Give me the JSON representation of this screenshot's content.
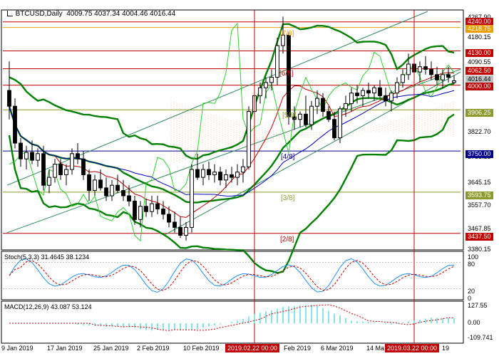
{
  "header": {
    "symbol": "BTCUSD,Daily",
    "ohlc": "4009.75 4037.34 4004.46 4016.44"
  },
  "stoch": {
    "label": "Stoch(5,3,3) 31.4645 38.1234",
    "ticks": [
      "100",
      "80",
      "20",
      "0"
    ]
  },
  "macd": {
    "label": "MACD(12,26,9) 43.087 53.124",
    "ticks": [
      "127.55",
      "0.00",
      "-109.741"
    ]
  },
  "murrey_labels": [
    "[7/8]",
    "[6/8]",
    "[5/8]",
    "[4/8]",
    "[3/8]",
    "[2/8]"
  ],
  "price_ticks": [
    "4267.90",
    "4180.15",
    "4090.55",
    "3912.50",
    "3822.70",
    "3735.35",
    "3645.15",
    "3557.70",
    "3467.85",
    "3380.15"
  ],
  "price_tags": [
    {
      "text": "4240.00",
      "color": "#c00000"
    },
    {
      "text": "4218.75",
      "color": "#e8a000"
    },
    {
      "text": "4130.00",
      "color": "#c00000"
    },
    {
      "text": "4062.50",
      "color": "#c00000"
    },
    {
      "text": "4016.44",
      "color": "#c0c0c0"
    },
    {
      "text": "4000.00",
      "color": "#c00000"
    },
    {
      "text": "3906.25",
      "color": "#8c9a2c"
    },
    {
      "text": "3750.00",
      "color": "#00008b"
    },
    {
      "text": "3593.75",
      "color": "#8c9a2c"
    },
    {
      "text": "3437.50",
      "color": "#c00000"
    }
  ],
  "x_ticks": [
    "9 Jan 2019",
    "17 Jan 2019",
    "25 Jan 2019",
    "2 Feb 2019",
    "10 Feb 2019",
    "Feb 2019",
    "6 Mar 2019",
    "14 Ma",
    "19"
  ],
  "x_markers": [
    "2019.02.22 00:00",
    "2019.03.22 00:00"
  ],
  "colors": {
    "resistance": "#c00000",
    "murrey_mid": "#e8a000",
    "murrey_green": "#8c9a2c",
    "murrey_blue": "#00008b",
    "bollinger": "#008000",
    "channel": "#2e8b57",
    "ichimoku_tenkan": "#c00000",
    "ichimoku_kijun": "#0000c0",
    "chikou": "#32cd32",
    "cloud": "#f0a070",
    "stoch_main": "#1e90ff",
    "stoch_signal": "#c00000",
    "macd": "#00ced1"
  },
  "chart_data": {
    "type": "candlestick",
    "timeframe": "Daily",
    "symbol": "BTCUSD",
    "ohlc_last": {
      "open": 4009.75,
      "high": 4037.34,
      "low": 4004.46,
      "close": 4016.44
    },
    "ylim": [
      3380,
      4280
    ],
    "price_levels": [
      4240.0,
      4218.75,
      4130.0,
      4062.5,
      4000.0,
      3906.25,
      3750.0,
      3593.75,
      3437.5
    ],
    "candles": [
      [
        3980,
        4090,
        3870,
        3920
      ],
      [
        3920,
        3950,
        3760,
        3780
      ],
      [
        3780,
        3800,
        3690,
        3720
      ],
      [
        3720,
        3770,
        3680,
        3745
      ],
      [
        3745,
        3790,
        3700,
        3715
      ],
      [
        3715,
        3760,
        3690,
        3740
      ],
      [
        3740,
        3770,
        3600,
        3620
      ],
      [
        3620,
        3680,
        3590,
        3650
      ],
      [
        3650,
        3720,
        3630,
        3700
      ],
      [
        3700,
        3720,
        3640,
        3660
      ],
      [
        3660,
        3700,
        3620,
        3680
      ],
      [
        3680,
        3760,
        3660,
        3740
      ],
      [
        3740,
        3780,
        3700,
        3720
      ],
      [
        3720,
        3750,
        3640,
        3660
      ],
      [
        3660,
        3680,
        3560,
        3600
      ],
      [
        3600,
        3660,
        3580,
        3640
      ],
      [
        3640,
        3680,
        3600,
        3610
      ],
      [
        3610,
        3650,
        3560,
        3580
      ],
      [
        3580,
        3640,
        3560,
        3620
      ],
      [
        3620,
        3660,
        3590,
        3600
      ],
      [
        3600,
        3640,
        3560,
        3580
      ],
      [
        3580,
        3620,
        3540,
        3560
      ],
      [
        3560,
        3580,
        3470,
        3490
      ],
      [
        3490,
        3560,
        3460,
        3540
      ],
      [
        3540,
        3570,
        3500,
        3520
      ],
      [
        3520,
        3580,
        3500,
        3550
      ],
      [
        3550,
        3580,
        3510,
        3530
      ],
      [
        3530,
        3560,
        3490,
        3510
      ],
      [
        3510,
        3540,
        3460,
        3480
      ],
      [
        3480,
        3520,
        3440,
        3460
      ],
      [
        3460,
        3500,
        3420,
        3430
      ],
      [
        3430,
        3480,
        3410,
        3460
      ],
      [
        3460,
        3700,
        3440,
        3680
      ],
      [
        3680,
        3740,
        3640,
        3650
      ],
      [
        3650,
        3700,
        3620,
        3680
      ],
      [
        3680,
        3710,
        3640,
        3660
      ],
      [
        3660,
        3700,
        3630,
        3670
      ],
      [
        3670,
        3690,
        3620,
        3640
      ],
      [
        3640,
        3680,
        3610,
        3660
      ],
      [
        3660,
        3690,
        3630,
        3650
      ],
      [
        3650,
        3700,
        3620,
        3670
      ],
      [
        3670,
        3720,
        3630,
        3690
      ],
      [
        3690,
        3920,
        3680,
        3900
      ],
      [
        3900,
        3980,
        3870,
        3960
      ],
      [
        3960,
        4010,
        3930,
        3990
      ],
      [
        3990,
        4030,
        3950,
        4010
      ],
      [
        4010,
        4060,
        3980,
        4030
      ],
      [
        4030,
        4180,
        4000,
        4150
      ],
      [
        4150,
        4260,
        4120,
        4190
      ],
      [
        4190,
        4200,
        3850,
        3880
      ],
      [
        3880,
        3920,
        3830,
        3870
      ],
      [
        3870,
        3900,
        3840,
        3890
      ],
      [
        3890,
        3960,
        3840,
        3850
      ],
      [
        3850,
        3940,
        3830,
        3920
      ],
      [
        3920,
        3980,
        3890,
        3950
      ],
      [
        3950,
        3970,
        3880,
        3900
      ],
      [
        3900,
        3920,
        3860,
        3870
      ],
      [
        3870,
        3900,
        3790,
        3800
      ],
      [
        3800,
        3920,
        3780,
        3910
      ],
      [
        3910,
        3960,
        3880,
        3930
      ],
      [
        3930,
        3990,
        3900,
        3970
      ],
      [
        3970,
        4000,
        3930,
        3960
      ],
      [
        3960,
        3990,
        3920,
        3980
      ],
      [
        3980,
        4010,
        3950,
        3970
      ],
      [
        3970,
        4000,
        3940,
        3990
      ],
      [
        3990,
        4020,
        3950,
        3960
      ],
      [
        3960,
        3990,
        3920,
        3940
      ],
      [
        3940,
        3980,
        3900,
        3970
      ],
      [
        3970,
        4030,
        3950,
        4010
      ],
      [
        4010,
        4060,
        3990,
        4040
      ],
      [
        4040,
        4120,
        4020,
        4080
      ],
      [
        4080,
        4100,
        4030,
        4050
      ],
      [
        4050,
        4090,
        4010,
        4070
      ],
      [
        4070,
        4110,
        4040,
        4060
      ],
      [
        4060,
        4090,
        4020,
        4040
      ],
      [
        4040,
        4070,
        4000,
        4020
      ],
      [
        4020,
        4060,
        3990,
        4040
      ],
      [
        4040,
        4070,
        4010,
        4030
      ],
      [
        4009.75,
        4037.34,
        4004.46,
        4016.44
      ]
    ]
  }
}
